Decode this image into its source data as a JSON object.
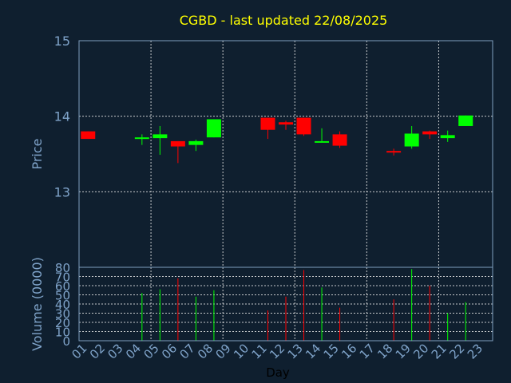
{
  "colors": {
    "background": "#0f1f2f",
    "frame": "#7f9fbf",
    "grid": "#e8e8e8",
    "text": "#7fa3c9",
    "title": "#ffff00",
    "up": "#00ff00",
    "down": "#ff0000"
  },
  "chart_data": {
    "type": "candlestick",
    "title": "CGBD - last updated 22/08/2025",
    "xlabel": "Day",
    "ylabel_price": "Price",
    "ylabel_volume": "Volume (0000)",
    "price_ylim": [
      12.0,
      15.0
    ],
    "price_yticks": [
      "15",
      "14",
      "13"
    ],
    "price_ytick_values": [
      15,
      14,
      13
    ],
    "volume_ylim": [
      0,
      80
    ],
    "volume_yticks": [
      "80",
      "70",
      "60",
      "50",
      "40",
      "30",
      "20",
      "10",
      "0"
    ],
    "volume_ytick_values": [
      80,
      70,
      60,
      50,
      40,
      30,
      20,
      10,
      0
    ],
    "x_labels": [
      "01",
      "02",
      "03",
      "04",
      "05",
      "06",
      "07",
      "08",
      "09",
      "10",
      "11",
      "12",
      "13",
      "14",
      "15",
      "16",
      "17",
      "18",
      "19",
      "20",
      "21",
      "22",
      "23"
    ],
    "x_grid_days": [
      4,
      8,
      12,
      16,
      20
    ],
    "grid": true,
    "candles": [
      {
        "day": 1,
        "open": 13.8,
        "close": 13.7,
        "high": 13.8,
        "low": 13.7,
        "volume": 0
      },
      {
        "day": 4,
        "open": 13.7,
        "close": 13.72,
        "high": 13.76,
        "low": 13.62,
        "volume": 52
      },
      {
        "day": 5,
        "open": 13.71,
        "close": 13.76,
        "high": 13.87,
        "low": 13.49,
        "volume": 56
      },
      {
        "day": 6,
        "open": 13.67,
        "close": 13.6,
        "high": 13.67,
        "low": 13.38,
        "volume": 68
      },
      {
        "day": 7,
        "open": 13.62,
        "close": 13.67,
        "high": 13.69,
        "low": 13.54,
        "volume": 48
      },
      {
        "day": 8,
        "open": 13.72,
        "close": 13.96,
        "high": 13.96,
        "low": 13.72,
        "volume": 55
      },
      {
        "day": 11,
        "open": 13.98,
        "close": 13.82,
        "high": 13.98,
        "low": 13.7,
        "volume": 33
      },
      {
        "day": 12,
        "open": 13.92,
        "close": 13.89,
        "high": 13.94,
        "low": 13.82,
        "volume": 48
      },
      {
        "day": 13,
        "open": 13.98,
        "close": 13.76,
        "high": 13.98,
        "low": 13.74,
        "volume": 77
      },
      {
        "day": 14,
        "open": 13.66,
        "close": 13.67,
        "high": 13.84,
        "low": 13.66,
        "volume": 58
      },
      {
        "day": 15,
        "open": 13.76,
        "close": 13.61,
        "high": 13.8,
        "low": 13.58,
        "volume": 36
      },
      {
        "day": 18,
        "open": 13.54,
        "close": 13.52,
        "high": 13.57,
        "low": 13.48,
        "volume": 45
      },
      {
        "day": 19,
        "open": 13.6,
        "close": 13.77,
        "high": 13.87,
        "low": 13.57,
        "volume": 78
      },
      {
        "day": 20,
        "open": 13.8,
        "close": 13.76,
        "high": 13.81,
        "low": 13.7,
        "volume": 60
      },
      {
        "day": 21,
        "open": 13.71,
        "close": 13.75,
        "high": 13.81,
        "low": 13.66,
        "volume": 30
      },
      {
        "day": 22,
        "open": 13.87,
        "close": 14.01,
        "high": 14.01,
        "low": 13.87,
        "volume": 42
      }
    ]
  }
}
